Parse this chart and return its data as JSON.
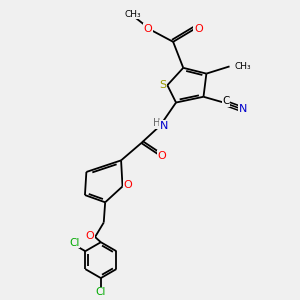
{
  "bg_color": "#f0f0f0",
  "bond_color": "#000000",
  "atoms": {
    "S": {
      "color": "#999900"
    },
    "N": {
      "color": "#0000cc"
    },
    "O": {
      "color": "#ff0000"
    },
    "Cl": {
      "color": "#00aa00"
    },
    "C": {
      "color": "#000000"
    },
    "H": {
      "color": "#666666"
    }
  },
  "lw": 1.3,
  "dbo": 0.07
}
